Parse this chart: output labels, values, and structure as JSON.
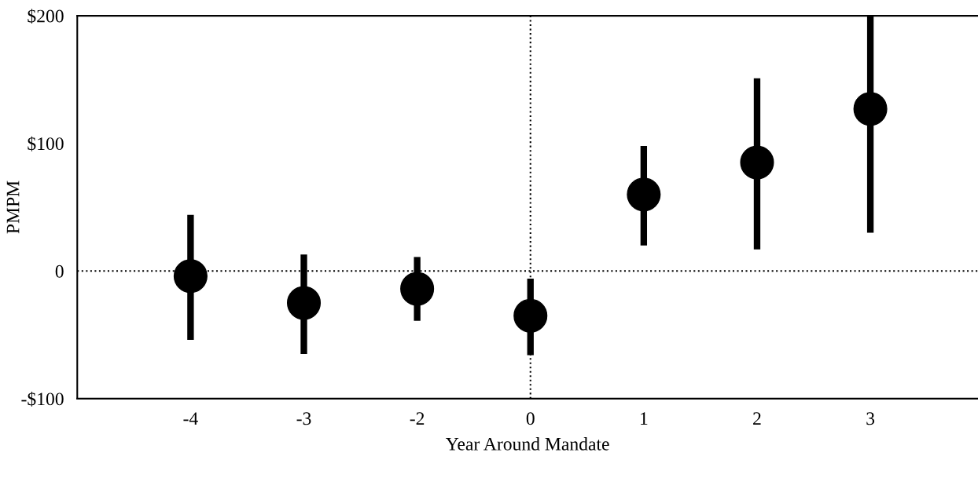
{
  "chart_data": {
    "type": "scatter",
    "xlabel": "Year Around Mandate",
    "ylabel": "PMPM",
    "categories": [
      "-4",
      "-3",
      "-2",
      "0",
      "1",
      "2",
      "3"
    ],
    "values": [
      -4,
      -25,
      -14,
      -35,
      60,
      85,
      127
    ],
    "errors": [
      [
        -54,
        44
      ],
      [
        -65,
        13
      ],
      [
        -39,
        11
      ],
      [
        -66,
        -6
      ],
      [
        20,
        98
      ],
      [
        17,
        151
      ],
      [
        30,
        200
      ]
    ],
    "color": "#000000",
    "marker": "circle",
    "grid": false,
    "legend": false,
    "ylim": [
      -100,
      200
    ],
    "yticks": [
      {
        "value": -100,
        "label": "-$100"
      },
      0,
      {
        "value": 100,
        "label": "$100"
      },
      {
        "value": 200,
        "label": "$200"
      }
    ],
    "ref_lines": [
      {
        "axis": "y",
        "value": 0,
        "line_style": "dotted"
      },
      {
        "axis": "x",
        "value": "0",
        "line_style": "dotted"
      }
    ]
  }
}
